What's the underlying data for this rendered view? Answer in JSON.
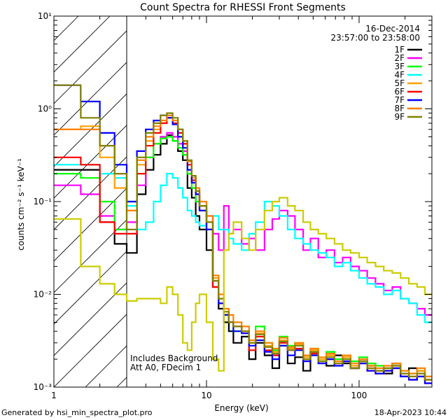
{
  "chart_data": {
    "type": "line",
    "title": "Count Spectra for RHESSI Front Segments",
    "xlabel": "Energy (keV)",
    "ylabel": "counts cm⁻² s⁻¹ keV⁻¹",
    "x_scale": "log",
    "y_scale": "log",
    "xlim": [
      1,
      300
    ],
    "ylim": [
      0.001,
      10
    ],
    "x_tick_labels": [
      "1",
      "10",
      "100"
    ],
    "y_tick_labels": [
      "10⁻³",
      "10⁻²",
      "10⁻¹",
      "10⁰",
      "10¹"
    ],
    "date": "16-Dec-2014",
    "time_range": "23:57:00 to 23:58:00",
    "notes": [
      "Includes Background",
      "Att A0, FDecim 1"
    ],
    "hatched_region_kev": [
      1,
      3
    ],
    "legend_position": "top-right",
    "edges": [
      1.0,
      1.5,
      2.0,
      2.5,
      3.0,
      3.5,
      4.0,
      4.5,
      5.0,
      5.5,
      6.0,
      6.5,
      7.0,
      7.5,
      8.0,
      8.5,
      9.0,
      10,
      11,
      12,
      13,
      14,
      15,
      17,
      19,
      21,
      24,
      27,
      30,
      34,
      38,
      43,
      48,
      54,
      61,
      69,
      78,
      88,
      100,
      113,
      128,
      145,
      165,
      187,
      212,
      240,
      270,
      300
    ],
    "series": [
      {
        "name": "1F",
        "color": "#000000",
        "values": [
          0.22,
          0.22,
          0.06,
          0.035,
          0.028,
          0.12,
          0.22,
          0.32,
          0.42,
          0.52,
          0.45,
          0.35,
          0.28,
          0.14,
          0.11,
          0.07,
          0.05,
          0.03,
          0.012,
          0.007,
          0.005,
          0.004,
          0.003,
          0.0035,
          0.002,
          0.003,
          0.0022,
          0.0016,
          0.0028,
          0.0018,
          0.0021,
          0.0015,
          0.0024,
          0.0019,
          0.0017,
          0.0022,
          0.0018,
          0.0016,
          0.002,
          0.0017,
          0.0015,
          0.0014,
          0.0018,
          0.0013,
          0.0016,
          0.0015,
          0.0012
        ]
      },
      {
        "name": "2F",
        "color": "#ff00ff",
        "values": [
          0.15,
          0.12,
          0.07,
          0.05,
          0.06,
          0.15,
          0.3,
          0.42,
          0.5,
          0.55,
          0.5,
          0.42,
          0.35,
          0.22,
          0.16,
          0.12,
          0.09,
          0.07,
          0.045,
          0.03,
          0.09,
          0.045,
          0.05,
          0.035,
          0.04,
          0.03,
          0.05,
          0.065,
          0.08,
          0.07,
          0.05,
          0.03,
          0.04,
          0.025,
          0.03,
          0.022,
          0.025,
          0.02,
          0.018,
          0.015,
          0.013,
          0.011,
          0.012,
          0.009,
          0.008,
          0.007,
          0.006
        ]
      },
      {
        "name": "3F",
        "color": "#00ff00",
        "values": [
          0.2,
          0.18,
          0.1,
          0.05,
          0.1,
          0.2,
          0.3,
          0.42,
          0.48,
          0.5,
          0.45,
          0.38,
          0.32,
          0.2,
          0.14,
          0.1,
          0.08,
          0.05,
          0.015,
          0.008,
          0.006,
          0.005,
          0.004,
          0.004,
          0.003,
          0.0045,
          0.003,
          0.0025,
          0.0035,
          0.0028,
          0.003,
          0.0022,
          0.0026,
          0.002,
          0.0024,
          0.002,
          0.0022,
          0.0019,
          0.0021,
          0.0018,
          0.0017,
          0.0016,
          0.0018,
          0.0015,
          0.0014,
          0.0015,
          0.0013
        ]
      },
      {
        "name": "4F",
        "color": "#00ffff",
        "values": [
          0.25,
          0.25,
          0.2,
          0.18,
          0.09,
          0.05,
          0.06,
          0.1,
          0.15,
          0.2,
          0.18,
          0.14,
          0.11,
          0.08,
          0.07,
          0.06,
          0.055,
          0.05,
          0.07,
          0.05,
          0.05,
          0.04,
          0.035,
          0.03,
          0.045,
          0.06,
          0.1,
          0.09,
          0.07,
          0.05,
          0.04,
          0.035,
          0.03,
          0.028,
          0.025,
          0.02,
          0.022,
          0.018,
          0.015,
          0.013,
          0.012,
          0.01,
          0.011,
          0.009,
          0.008,
          0.006,
          0.005
        ]
      },
      {
        "name": "5F",
        "color": "#ffa000",
        "values": [
          0.6,
          0.65,
          0.3,
          0.14,
          0.08,
          0.25,
          0.45,
          0.6,
          0.7,
          0.8,
          0.7,
          0.55,
          0.42,
          0.25,
          0.18,
          0.13,
          0.09,
          0.06,
          0.015,
          0.009,
          0.006,
          0.005,
          0.0045,
          0.004,
          0.003,
          0.0038,
          0.0028,
          0.0024,
          0.0032,
          0.0026,
          0.0029,
          0.0021,
          0.0025,
          0.002,
          0.0022,
          0.0018,
          0.0021,
          0.0017,
          0.0019,
          0.0016,
          0.0015,
          0.0016,
          0.0017,
          0.0014,
          0.0013,
          0.0015,
          0.0012
        ]
      },
      {
        "name": "6F",
        "color": "#ff0000",
        "values": [
          0.3,
          0.25,
          0.06,
          0.045,
          0.045,
          0.2,
          0.4,
          0.55,
          0.7,
          0.8,
          0.7,
          0.55,
          0.42,
          0.25,
          0.17,
          0.12,
          0.08,
          0.05,
          0.012,
          0.008,
          0.006,
          0.005,
          0.0045,
          0.004,
          0.0025,
          0.0035,
          0.0025,
          0.0022,
          0.003,
          0.0025,
          0.0026,
          0.002,
          0.0023,
          0.0019,
          0.002,
          0.0018,
          0.0019,
          0.0016,
          0.0018,
          0.0015,
          0.0014,
          0.0015,
          0.0016,
          0.0013,
          0.0012,
          0.0013,
          0.0011
        ]
      },
      {
        "name": "7F",
        "color": "#0000ff",
        "values": [
          1.8,
          1.2,
          0.55,
          0.25,
          0.1,
          0.35,
          0.6,
          0.75,
          0.85,
          0.8,
          0.68,
          0.5,
          0.38,
          0.22,
          0.16,
          0.12,
          0.08,
          0.05,
          0.014,
          0.008,
          0.006,
          0.005,
          0.004,
          0.0038,
          0.0028,
          0.0032,
          0.0024,
          0.002,
          0.0028,
          0.0022,
          0.0025,
          0.0019,
          0.0022,
          0.0018,
          0.002,
          0.0017,
          0.0019,
          0.0016,
          0.0018,
          0.0015,
          0.0014,
          0.0015,
          0.0016,
          0.0013,
          0.0012,
          0.0013,
          0.0011
        ]
      },
      {
        "name": "8F",
        "color": "#ff8000",
        "values": [
          0.6,
          0.6,
          0.4,
          0.2,
          0.08,
          0.28,
          0.5,
          0.65,
          0.75,
          0.85,
          0.75,
          0.6,
          0.45,
          0.27,
          0.19,
          0.14,
          0.1,
          0.07,
          0.016,
          0.01,
          0.007,
          0.006,
          0.005,
          0.0045,
          0.0032,
          0.004,
          0.003,
          0.0026,
          0.0034,
          0.0027,
          0.003,
          0.0022,
          0.0026,
          0.0021,
          0.0023,
          0.0019,
          0.0022,
          0.0018,
          0.002,
          0.0017,
          0.0016,
          0.0017,
          0.0018,
          0.0015,
          0.0014,
          0.0016,
          0.0013
        ]
      },
      {
        "name": "9F",
        "color": "#808000",
        "values": [
          1.8,
          0.8,
          0.4,
          0.2,
          0.05,
          0.3,
          0.55,
          0.7,
          0.85,
          0.9,
          0.8,
          0.6,
          0.45,
          0.28,
          0.19,
          0.13,
          0.09,
          0.06,
          0.014,
          0.009,
          0.0065,
          0.005,
          0.0045,
          0.004,
          0.003,
          0.0037,
          0.0027,
          0.0023,
          0.0031,
          0.0025,
          0.0028,
          0.002,
          0.0024,
          0.0019,
          0.0021,
          0.0018,
          0.002,
          0.0016,
          0.0019,
          0.0016,
          0.0015,
          0.0016,
          0.0017,
          0.0014,
          0.0013,
          0.0014,
          0.0012
        ]
      },
      {
        "name": "",
        "color": "#cccc00",
        "values": [
          0.065,
          0.02,
          0.013,
          0.01,
          0.0085,
          0.009,
          0.009,
          0.009,
          0.008,
          0.012,
          0.01,
          0.006,
          0.003,
          0.0025,
          0.005,
          0.008,
          0.01,
          0.005,
          0.002,
          0.0015,
          0.03,
          0.045,
          0.06,
          0.04,
          0.03,
          0.05,
          0.08,
          0.1,
          0.11,
          0.09,
          0.08,
          0.06,
          0.05,
          0.045,
          0.04,
          0.035,
          0.03,
          0.028,
          0.025,
          0.022,
          0.02,
          0.018,
          0.017,
          0.015,
          0.013,
          0.012,
          0.01
        ]
      }
    ]
  },
  "footer": {
    "left": "Generated by hsi_min_spectra_plot.pro",
    "right": "18-Apr-2023 10:44"
  }
}
